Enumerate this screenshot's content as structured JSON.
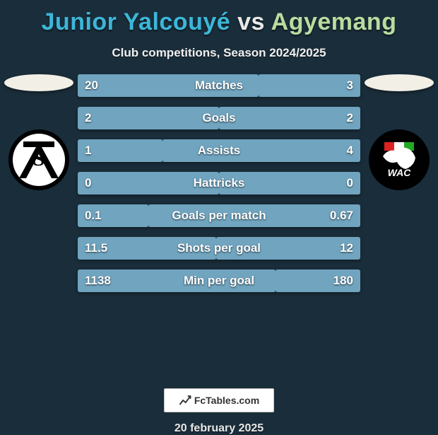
{
  "title": {
    "player1": "Junior Yalcouyé",
    "player2": "Agyemang",
    "player1_color": "#3db6d8",
    "player2_color": "#b9dca0",
    "vs_color": "#e9e9e9",
    "fontsize": 34
  },
  "subtitle": "Club competitions, Season 2024/2025",
  "date": "20 february 2025",
  "background_color": "#1a2d3a",
  "head_ovals": {
    "left_color": "#f2efe6",
    "right_color": "#f2efe6"
  },
  "crests": {
    "left": {
      "ring": "#000000",
      "inner": "#ffffff",
      "accent": "#000000",
      "letter": "S"
    },
    "right": {
      "ring": "#000000",
      "inner": "#000000",
      "wolf": "#ffffff",
      "stripes": [
        "#d22",
        "#fff",
        "#2a2"
      ],
      "text": "WAC"
    }
  },
  "bars": {
    "track_color": "#2b4961",
    "left_fill_color": "#70a4bf",
    "right_fill_color": "#70a4bf",
    "label_fontsize": 17,
    "value_fontsize": 17,
    "rows": [
      {
        "label": "Matches",
        "left": "20",
        "right": "3",
        "left_pct": 64,
        "right_pct": 36
      },
      {
        "label": "Goals",
        "left": "2",
        "right": "2",
        "left_pct": 50,
        "right_pct": 50
      },
      {
        "label": "Assists",
        "left": "1",
        "right": "4",
        "left_pct": 30,
        "right_pct": 70
      },
      {
        "label": "Hattricks",
        "left": "0",
        "right": "0",
        "left_pct": 50,
        "right_pct": 50
      },
      {
        "label": "Goals per match",
        "left": "0.1",
        "right": "0.67",
        "left_pct": 25,
        "right_pct": 75
      },
      {
        "label": "Shots per goal",
        "left": "11.5",
        "right": "12",
        "left_pct": 49,
        "right_pct": 51
      },
      {
        "label": "Min per goal",
        "left": "1138",
        "right": "180",
        "left_pct": 70,
        "right_pct": 30
      }
    ]
  },
  "brand": {
    "name": "FcTables.com"
  }
}
